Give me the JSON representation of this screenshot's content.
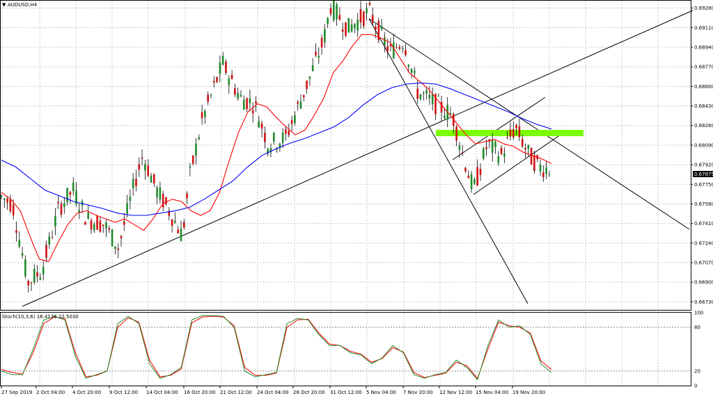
{
  "window": {
    "title": "AUDUSD,H4",
    "menu_icon": "triangle-down-icon"
  },
  "colors": {
    "background": "#ffffff",
    "grid": "#c8c8c8",
    "bull": "#1f8b2a",
    "bear": "#d01010",
    "candle_wick": "#000000",
    "ma_fast": "#ff0000",
    "ma_slow": "#0000ff",
    "stoch_main": "#1f8b2a",
    "stoch_signal": "#ff0000",
    "trendline": "#000000",
    "zone": "#7cfc00",
    "current_price_bg": "#000000"
  },
  "price_axis": {
    "labels": [
      "0.69280",
      "0.69110",
      "0.68940",
      "0.68770",
      "0.68600",
      "0.68430",
      "0.68260",
      "0.68090",
      "0.67920",
      "0.67750",
      "0.67580",
      "0.67410",
      "0.67240",
      "0.67070",
      "0.66900",
      "0.66730"
    ],
    "current_price": "0.67875"
  },
  "time_axis": {
    "labels": [
      "27 Sep 2019",
      "2 Oct 04:00",
      "4 Oct 20:00",
      "9 Oct 12:00",
      "14 Oct 04:00",
      "16 Oct 20:00",
      "21 Oct 12:00",
      "24 Oct 04:00",
      "28 Oct 20:00",
      "31 Oct 12:00",
      "5 Nov 04:00",
      "7 Nov 20:00",
      "12 Nov 12:00",
      "15 Nov 04:00",
      "19 Nov 20:00"
    ]
  },
  "stochastic": {
    "label": "Stoch(10,3,6) 18.4176 22.5030",
    "levels": [
      "100",
      "80",
      "20",
      "0"
    ]
  },
  "chart_data": {
    "type": "line",
    "symbol": "AUDUSD",
    "timeframe": "H4",
    "price_range": [
      0.6666,
      0.6935
    ],
    "ma_fast": [
      0.6768,
      0.6762,
      0.6752,
      0.673,
      0.671,
      0.6708,
      0.6725,
      0.674,
      0.675,
      0.6752,
      0.6748,
      0.6745,
      0.6742,
      0.6745,
      0.674,
      0.6735,
      0.6745,
      0.6758,
      0.6762,
      0.676,
      0.6752,
      0.6748,
      0.6752,
      0.6768,
      0.6795,
      0.682,
      0.6838,
      0.6845,
      0.6842,
      0.6833,
      0.6825,
      0.6818,
      0.6822,
      0.6835,
      0.685,
      0.6872,
      0.6882,
      0.6895,
      0.6905,
      0.6905,
      0.6902,
      0.6898,
      0.6885,
      0.6872,
      0.6865,
      0.6858,
      0.6848,
      0.6838,
      0.6828,
      0.6818,
      0.681,
      0.6812,
      0.6814,
      0.681,
      0.6808,
      0.6803,
      0.68,
      0.6797,
      0.6793
    ],
    "ma_slow": [
      0.6796,
      0.679,
      0.678,
      0.677,
      0.6765,
      0.676,
      0.6757,
      0.6754,
      0.675,
      0.6748,
      0.6748,
      0.675,
      0.6752,
      0.6755,
      0.6762,
      0.677,
      0.6778,
      0.679,
      0.68,
      0.6806,
      0.6811,
      0.6815,
      0.682,
      0.6825,
      0.6833,
      0.6844,
      0.6853,
      0.6859,
      0.6862,
      0.6863,
      0.6862,
      0.6858,
      0.6853,
      0.6848,
      0.6843,
      0.6838,
      0.6832,
      0.6827,
      0.6823
    ],
    "stoch_main": [
      20,
      15,
      15,
      50,
      90,
      95,
      90,
      40,
      10,
      15,
      20,
      85,
      95,
      85,
      30,
      10,
      15,
      25,
      90,
      96,
      96,
      95,
      80,
      20,
      12,
      15,
      18,
      85,
      92,
      90,
      70,
      55,
      55,
      45,
      42,
      30,
      38,
      55,
      45,
      15,
      10,
      15,
      18,
      35,
      25,
      8,
      55,
      90,
      80,
      82,
      70,
      30,
      18
    ],
    "stoch_signal": [
      22,
      18,
      16,
      45,
      85,
      94,
      92,
      45,
      12,
      14,
      20,
      80,
      93,
      87,
      35,
      12,
      14,
      23,
      86,
      94,
      95,
      94,
      82,
      25,
      14,
      14,
      17,
      80,
      90,
      91,
      72,
      57,
      55,
      47,
      43,
      32,
      37,
      52,
      46,
      18,
      11,
      14,
      17,
      32,
      27,
      10,
      50,
      87,
      82,
      80,
      72,
      34,
      22
    ]
  }
}
